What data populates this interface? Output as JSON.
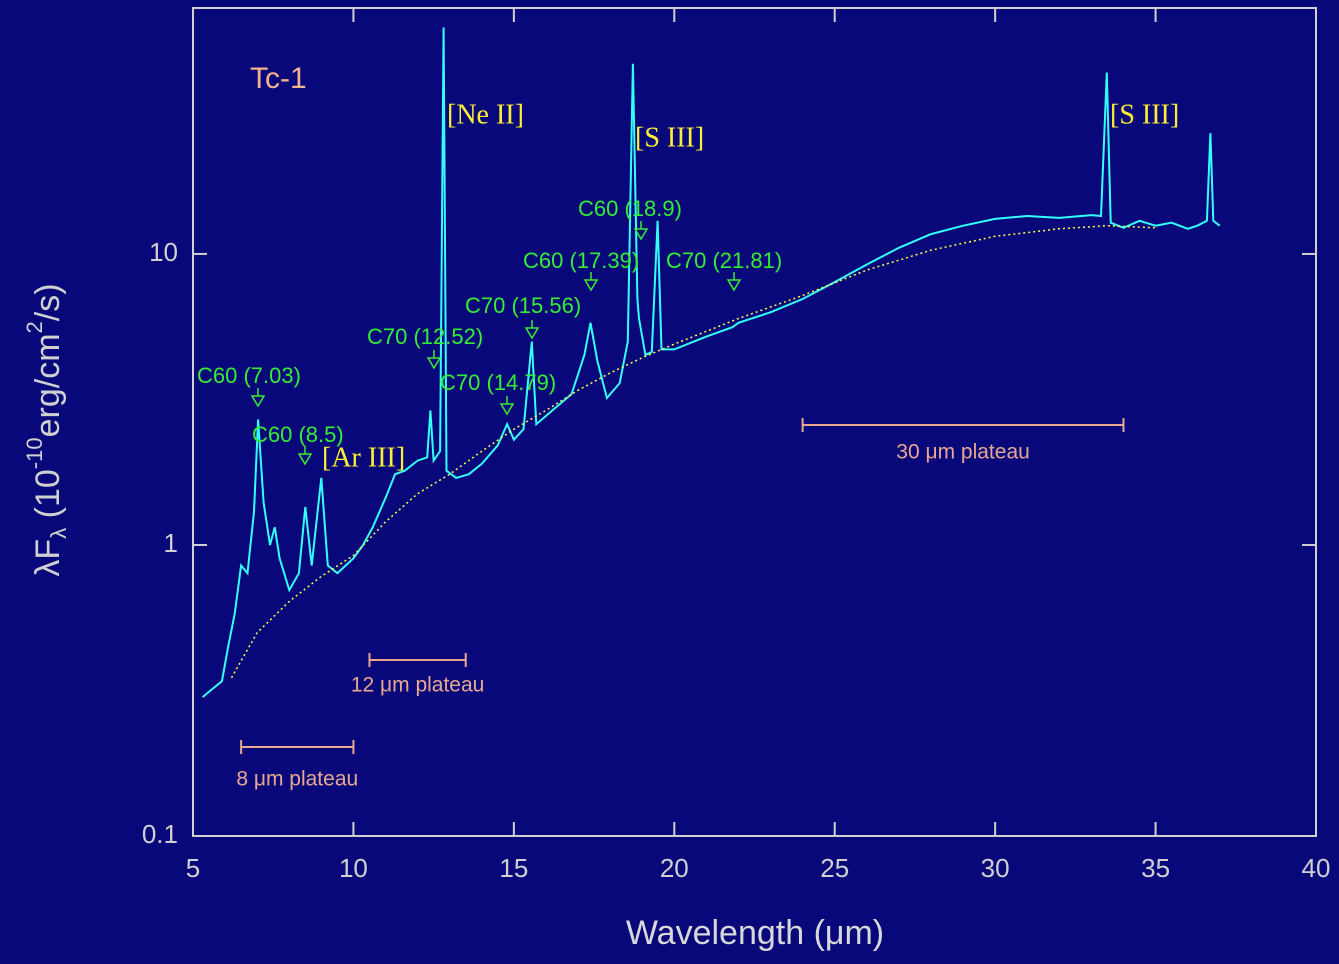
{
  "chart_data": {
    "type": "line",
    "title": "Tc-1",
    "x_label": "Wavelength (μm)",
    "y_label": [
      "λF",
      "λ",
      " (10",
      "-10",
      "erg/cm",
      "2",
      "/s)"
    ],
    "y_scale": "log",
    "xlim": [
      5,
      40
    ],
    "xticks": [
      5,
      10,
      15,
      20,
      25,
      30,
      35,
      40
    ],
    "ylim": [
      0.1,
      70
    ],
    "yticks": [
      0.1,
      1,
      10
    ],
    "background": "#08087a",
    "series": [
      {
        "color": "#33ffff",
        "dash": false,
        "x": [
          5.3,
          5.6,
          5.9,
          6.1,
          6.3,
          6.5,
          6.7,
          6.9,
          7.03,
          7.2,
          7.4,
          7.55,
          7.7,
          8.0,
          8.3,
          8.5,
          8.7,
          9.0,
          9.2,
          9.5,
          10.0,
          10.3,
          10.6,
          11.0,
          11.3,
          11.6,
          12.0,
          12.3,
          12.4,
          12.5,
          12.7,
          12.81,
          12.9,
          13.2,
          13.6,
          14.0,
          14.5,
          14.79,
          15.0,
          15.3,
          15.56,
          15.7,
          16.2,
          16.8,
          17.2,
          17.39,
          17.6,
          17.9,
          18.3,
          18.55,
          18.71,
          18.85,
          18.9,
          19.1,
          19.3,
          19.48,
          19.6,
          20,
          21,
          21.81,
          22,
          23,
          24,
          25,
          26,
          27,
          28,
          29,
          30,
          31,
          32,
          33,
          33.3,
          33.48,
          33.6,
          34,
          34.5,
          35,
          35.5,
          36,
          36.3,
          36.6,
          36.71,
          36.8,
          37.0
        ],
        "values": [
          0.3,
          0.32,
          0.34,
          0.45,
          0.58,
          0.85,
          0.8,
          1.3,
          2.7,
          1.4,
          1.0,
          1.15,
          0.9,
          0.7,
          0.8,
          1.35,
          0.85,
          1.7,
          0.85,
          0.8,
          0.9,
          1.0,
          1.15,
          1.45,
          1.75,
          1.8,
          1.95,
          2.0,
          2.9,
          1.95,
          2.1,
          60,
          1.8,
          1.7,
          1.75,
          1.9,
          2.2,
          2.6,
          2.3,
          2.5,
          5.0,
          2.6,
          2.9,
          3.3,
          4.5,
          5.8,
          4.3,
          3.2,
          3.6,
          5,
          45,
          7,
          6,
          4.5,
          4.6,
          13,
          4.7,
          4.7,
          5.2,
          5.6,
          5.8,
          6.3,
          7,
          8,
          9.2,
          10.5,
          11.7,
          12.5,
          13.2,
          13.5,
          13.3,
          13.6,
          13.5,
          42,
          12.8,
          12.3,
          13,
          12.5,
          12.8,
          12.2,
          12.5,
          13,
          26,
          13,
          12.5
        ]
      },
      {
        "color": "#ffff44",
        "dash": true,
        "x": [
          6.2,
          7,
          8,
          9,
          10,
          11,
          12,
          13,
          14,
          15,
          16,
          17,
          18,
          19,
          20,
          22,
          24,
          26,
          28,
          30,
          32,
          33.5,
          35
        ],
        "values": [
          0.35,
          0.5,
          0.64,
          0.78,
          0.92,
          1.2,
          1.5,
          1.75,
          2.1,
          2.5,
          2.9,
          3.4,
          3.9,
          4.4,
          4.9,
          6,
          7.2,
          8.8,
          10.3,
          11.5,
          12.2,
          12.5,
          12.3
        ]
      }
    ],
    "line_labels": [
      "[Ne II]",
      "[S III]",
      "[S III]",
      "[Ar III]"
    ],
    "feature_labels": [
      "C60 (7.03)",
      "C60 (8.5)",
      "C70 (12.52)",
      "C70 (14.79)",
      "C70 (15.56)",
      "C60 (17.39)",
      "C60 (18.9)",
      "C70 (21.81)"
    ],
    "plateaus": [
      {
        "label": "8 μm plateau",
        "range": [
          6.5,
          10
        ]
      },
      {
        "label": "12 μm plateau",
        "range": [
          10.5,
          13.5
        ]
      },
      {
        "label": "30 μm plateau",
        "range": [
          24,
          34
        ]
      }
    ]
  }
}
